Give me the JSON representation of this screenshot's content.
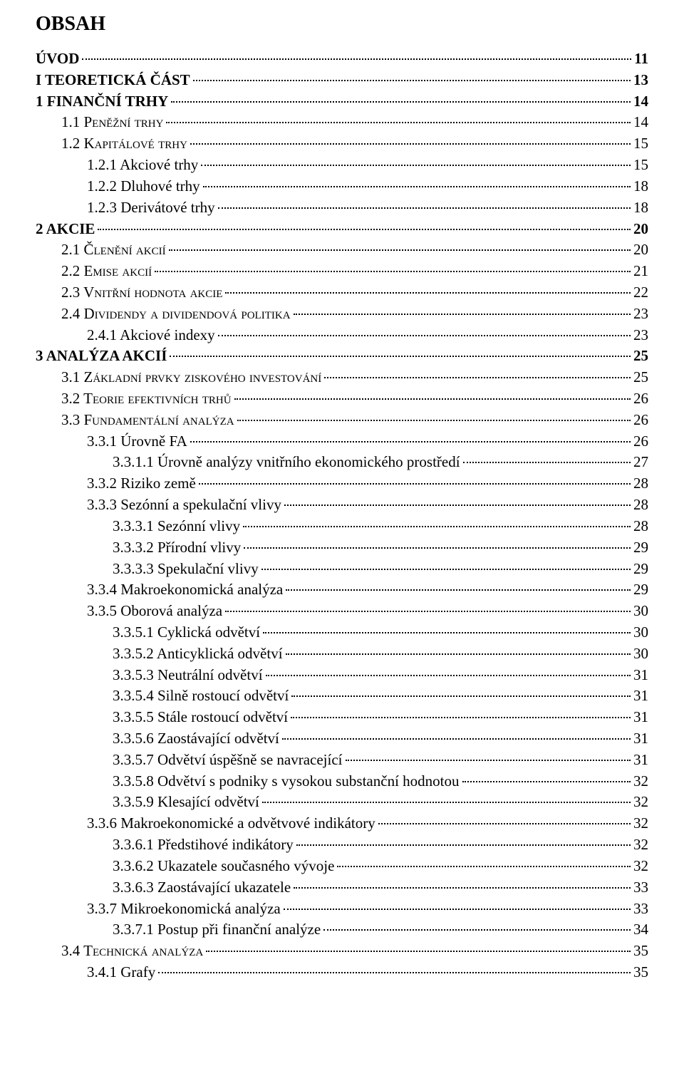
{
  "heading": "OBSAH",
  "entries": [
    {
      "label": "ÚVOD",
      "page": "11",
      "indent": 0,
      "bold": true,
      "caps": false
    },
    {
      "label": "I TEORETICKÁ ČÁST",
      "page": "13",
      "indent": 0,
      "bold": true,
      "caps": false
    },
    {
      "label": "1   FINANČNÍ TRHY",
      "page": "14",
      "indent": 0,
      "bold": true,
      "caps": false
    },
    {
      "label": "1.1   Peněžní trhy",
      "page": "14",
      "indent": 1,
      "bold": false,
      "caps": true
    },
    {
      "label": "1.2   Kapitálové trhy",
      "page": "15",
      "indent": 1,
      "bold": false,
      "caps": true
    },
    {
      "label": "1.2.1   Akciové trhy",
      "page": "15",
      "indent": 2,
      "bold": false,
      "caps": false
    },
    {
      "label": "1.2.2   Dluhové trhy",
      "page": "18",
      "indent": 2,
      "bold": false,
      "caps": false
    },
    {
      "label": "1.2.3   Derivátové trhy",
      "page": "18",
      "indent": 2,
      "bold": false,
      "caps": false
    },
    {
      "label": "2   AKCIE",
      "page": "20",
      "indent": 0,
      "bold": true,
      "caps": false
    },
    {
      "label": "2.1   Členění akcií",
      "page": "20",
      "indent": 1,
      "bold": false,
      "caps": true
    },
    {
      "label": "2.2   Emise akcií",
      "page": "21",
      "indent": 1,
      "bold": false,
      "caps": true
    },
    {
      "label": "2.3   Vnitřní hodnota akcie",
      "page": "22",
      "indent": 1,
      "bold": false,
      "caps": true
    },
    {
      "label": "2.4   Dividendy a dividendová politika",
      "page": "23",
      "indent": 1,
      "bold": false,
      "caps": true
    },
    {
      "label": "2.4.1   Akciové indexy",
      "page": "23",
      "indent": 2,
      "bold": false,
      "caps": false
    },
    {
      "label": "3   ANALÝZA AKCIÍ",
      "page": "25",
      "indent": 0,
      "bold": true,
      "caps": false
    },
    {
      "label": "3.1   Základní prvky ziskového investování",
      "page": "25",
      "indent": 1,
      "bold": false,
      "caps": true
    },
    {
      "label": "3.2   Teorie efektivních trhů",
      "page": "26",
      "indent": 1,
      "bold": false,
      "caps": true
    },
    {
      "label": "3.3   Fundamentální analýza",
      "page": "26",
      "indent": 1,
      "bold": false,
      "caps": true
    },
    {
      "label": "3.3.1   Úrovně FA",
      "page": "26",
      "indent": 2,
      "bold": false,
      "caps": false
    },
    {
      "label": "3.3.1.1   Úrovně analýzy vnitřního ekonomického prostředí",
      "page": "27",
      "indent": 3,
      "bold": false,
      "caps": false
    },
    {
      "label": "3.3.2   Riziko země",
      "page": "28",
      "indent": 2,
      "bold": false,
      "caps": false
    },
    {
      "label": "3.3.3   Sezónní a spekulační vlivy",
      "page": "28",
      "indent": 2,
      "bold": false,
      "caps": false
    },
    {
      "label": "3.3.3.1   Sezónní vlivy",
      "page": "28",
      "indent": 3,
      "bold": false,
      "caps": false
    },
    {
      "label": "3.3.3.2   Přírodní vlivy",
      "page": "29",
      "indent": 3,
      "bold": false,
      "caps": false
    },
    {
      "label": "3.3.3.3   Spekulační vlivy",
      "page": "29",
      "indent": 3,
      "bold": false,
      "caps": false
    },
    {
      "label": "3.3.4   Makroekonomická analýza",
      "page": "29",
      "indent": 2,
      "bold": false,
      "caps": false
    },
    {
      "label": "3.3.5   Oborová analýza",
      "page": "30",
      "indent": 2,
      "bold": false,
      "caps": false
    },
    {
      "label": "3.3.5.1   Cyklická odvětví",
      "page": "30",
      "indent": 3,
      "bold": false,
      "caps": false
    },
    {
      "label": "3.3.5.2   Anticyklická odvětví",
      "page": "30",
      "indent": 3,
      "bold": false,
      "caps": false
    },
    {
      "label": "3.3.5.3   Neutrální odvětví",
      "page": "31",
      "indent": 3,
      "bold": false,
      "caps": false
    },
    {
      "label": "3.3.5.4   Silně rostoucí odvětví",
      "page": "31",
      "indent": 3,
      "bold": false,
      "caps": false
    },
    {
      "label": "3.3.5.5   Stále rostoucí odvětví",
      "page": "31",
      "indent": 3,
      "bold": false,
      "caps": false
    },
    {
      "label": "3.3.5.6   Zaostávající odvětví",
      "page": "31",
      "indent": 3,
      "bold": false,
      "caps": false
    },
    {
      "label": "3.3.5.7   Odvětví úspěšně se navracející",
      "page": "31",
      "indent": 3,
      "bold": false,
      "caps": false
    },
    {
      "label": "3.3.5.8   Odvětví s podniky s vysokou substanční hodnotou",
      "page": "32",
      "indent": 3,
      "bold": false,
      "caps": false
    },
    {
      "label": "3.3.5.9   Klesající odvětví",
      "page": "32",
      "indent": 3,
      "bold": false,
      "caps": false
    },
    {
      "label": "3.3.6   Makroekonomické a odvětvové indikátory",
      "page": "32",
      "indent": 2,
      "bold": false,
      "caps": false
    },
    {
      "label": "3.3.6.1   Předstihové indikátory",
      "page": "32",
      "indent": 3,
      "bold": false,
      "caps": false
    },
    {
      "label": "3.3.6.2   Ukazatele současného vývoje",
      "page": "32",
      "indent": 3,
      "bold": false,
      "caps": false
    },
    {
      "label": "3.3.6.3   Zaostávající ukazatele",
      "page": "33",
      "indent": 3,
      "bold": false,
      "caps": false
    },
    {
      "label": "3.3.7   Mikroekonomická analýza",
      "page": "33",
      "indent": 2,
      "bold": false,
      "caps": false
    },
    {
      "label": "3.3.7.1   Postup při finanční analýze",
      "page": "34",
      "indent": 3,
      "bold": false,
      "caps": false
    },
    {
      "label": "3.4   Technická analýza",
      "page": "35",
      "indent": 1,
      "bold": false,
      "caps": true
    },
    {
      "label": "3.4.1   Grafy",
      "page": "35",
      "indent": 2,
      "bold": false,
      "caps": false
    }
  ]
}
